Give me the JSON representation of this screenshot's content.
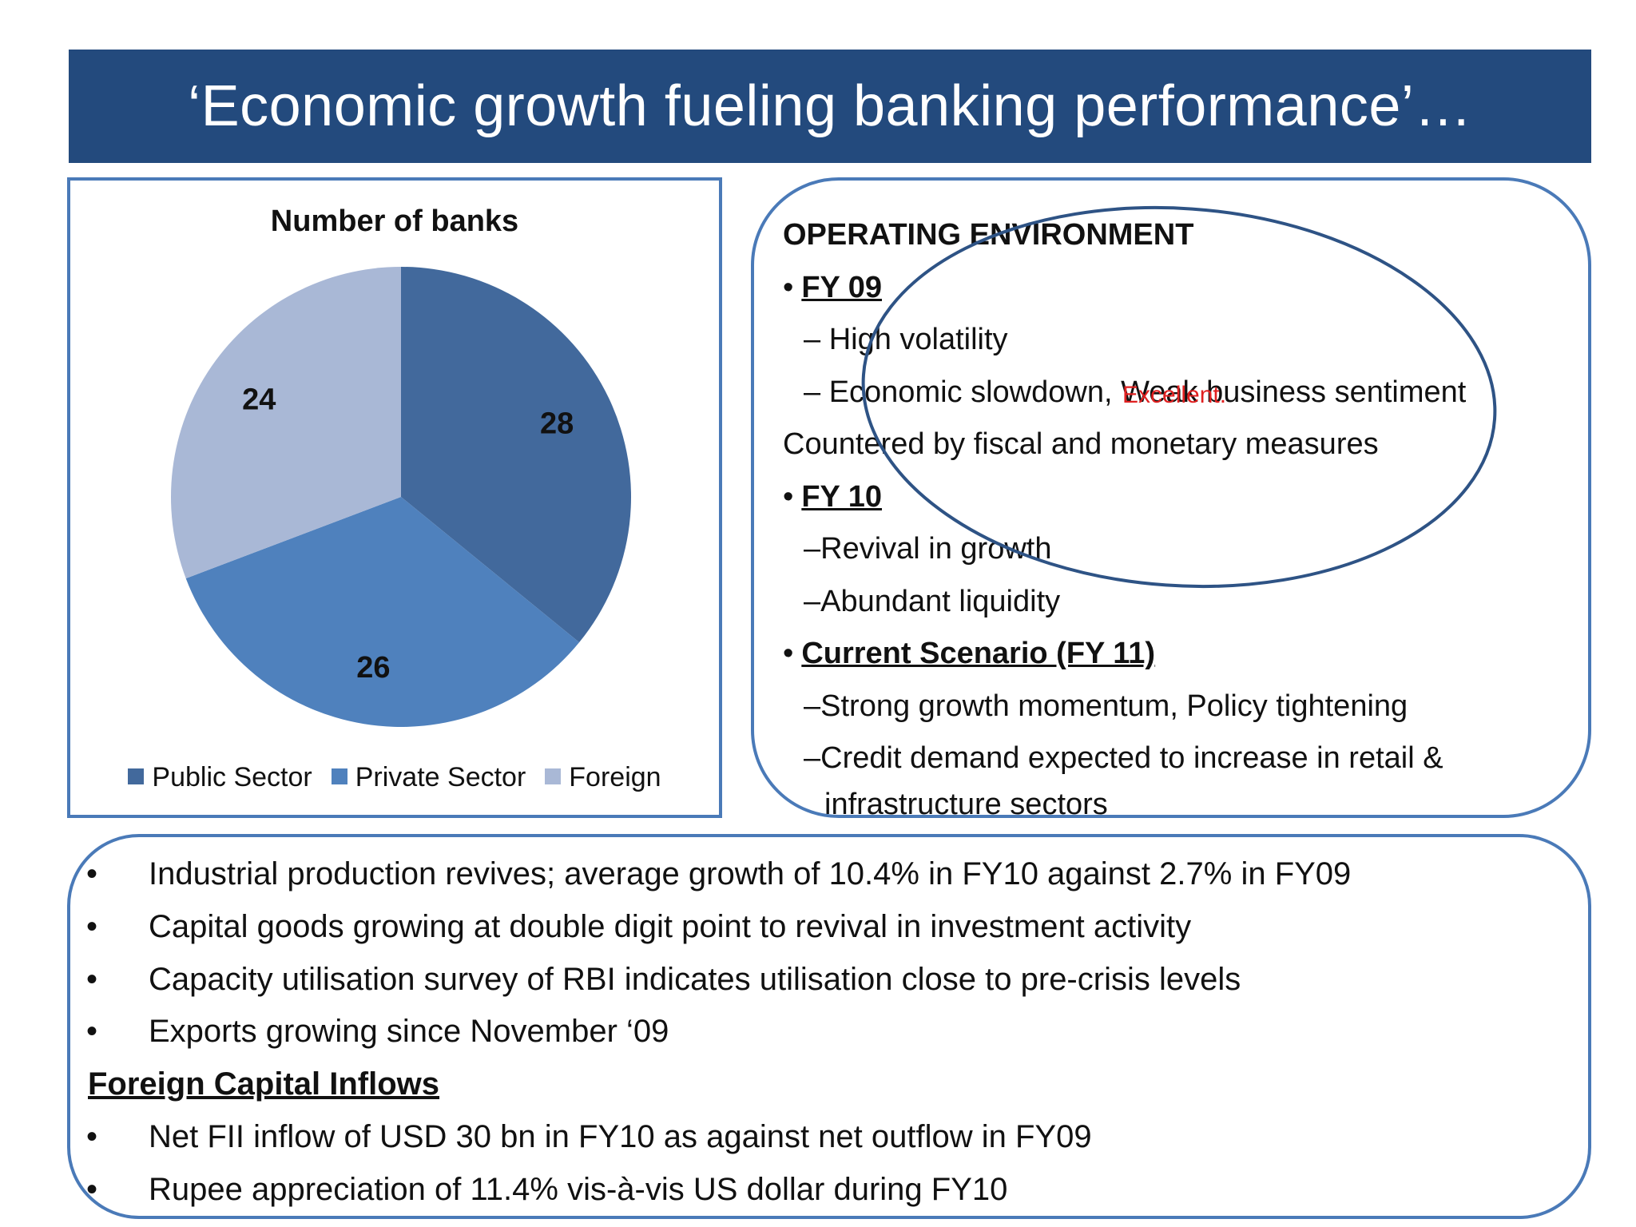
{
  "title": "‘Economic growth fueling banking performance’…",
  "chart_data": {
    "type": "pie",
    "title": "Number of banks",
    "categories": [
      "Public Sector",
      "Private Sector",
      "Foreign"
    ],
    "values": [
      28,
      26,
      24
    ],
    "data_labels": [
      "28",
      "26",
      "24"
    ],
    "colors": [
      "#42699c",
      "#4f81bd",
      "#a9b8d6"
    ],
    "legend_placement": "bottom",
    "start_angle_deg": 0,
    "direction": "clockwise"
  },
  "operating": {
    "heading": "OPERATING ENVIRONMENT",
    "lines": [
      {
        "type": "bullet-head",
        "bullet": "•",
        "text": "FY 09"
      },
      {
        "type": "sub",
        "text": "– High volatility"
      },
      {
        "type": "sub",
        "text": "– Economic slowdown, Weak business sentiment"
      },
      {
        "type": "plain",
        "text": "Countered by fiscal and monetary measures"
      },
      {
        "type": "bullet-head",
        "bullet": "•",
        "text": "FY 10"
      },
      {
        "type": "sub",
        "text": "–Revival in growth"
      },
      {
        "type": "sub",
        "text": "–Abundant liquidity"
      },
      {
        "type": "bullet-head",
        "bullet": "•",
        "text": "Current Scenario (FY 11)"
      },
      {
        "type": "sub",
        "text": "–Strong growth momentum, Policy tightening"
      },
      {
        "type": "sub",
        "text": "–Credit demand expected to increase in retail &"
      },
      {
        "type": "wrap",
        "text": "infrastructure sectors"
      }
    ]
  },
  "annotation": {
    "text": "Excellent.",
    "ellipse_color": "#2e5385",
    "text_color": "#e02020"
  },
  "bottom": {
    "rows": [
      {
        "type": "bullet",
        "bullet": "•",
        "text": "Industrial production revives; average growth of 10.4% in FY10 against 2.7% in FY09"
      },
      {
        "type": "bullet",
        "bullet": "•",
        "text": "Capital goods growing at double digit point to revival in investment activity"
      },
      {
        "type": "bullet",
        "bullet": "•",
        "text": "Capacity utilisation survey of RBI indicates utilisation close to pre-crisis levels"
      },
      {
        "type": "bullet",
        "bullet": "•",
        "text": "Exports growing since November ‘09"
      },
      {
        "type": "head",
        "text": "Foreign Capital Inflows"
      },
      {
        "type": "bullet",
        "bullet": "•",
        "text": "Net FII inflow of USD 30 bn in FY10 as against net outflow in FY09"
      },
      {
        "type": "bullet",
        "bullet": "•",
        "text": "Rupee appreciation of 11.4% vis-à-vis US dollar during FY10"
      }
    ]
  },
  "colors": {
    "title_bar": "#234a7d",
    "panel_border": "#4a7ab8"
  }
}
